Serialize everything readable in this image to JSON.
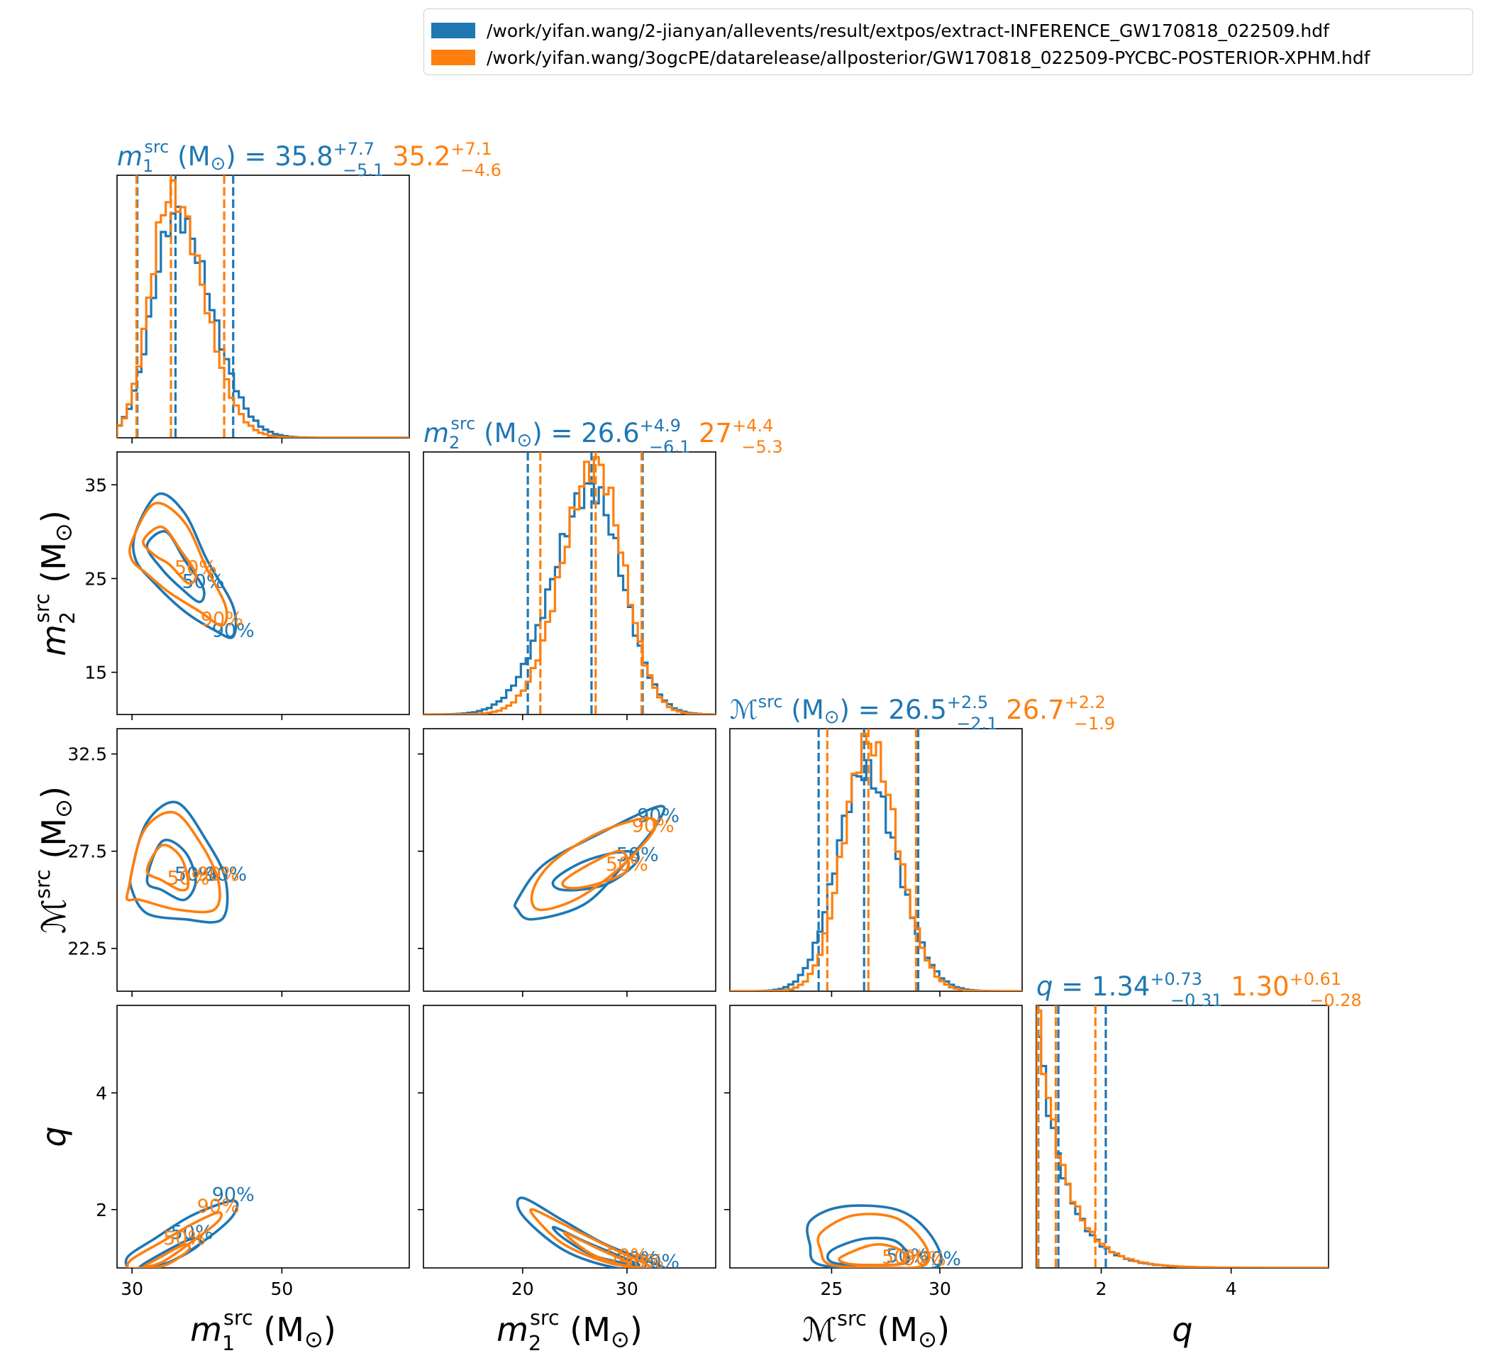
{
  "colors": {
    "blue": "#1f77b4",
    "orange": "#ff7f0e"
  },
  "legend": {
    "entries": [
      {
        "label": "/work/yifan.wang/2-jianyan/allevents/result/extpos/extract-INFERENCE_GW170818_022509.hdf",
        "color": "#1f77b4"
      },
      {
        "label": "/work/yifan.wang/3ogcPE/datarelease/allposterior/GW170818_022509-PYCBC-POSTERIOR-XPHM.hdf",
        "color": "#ff7f0e"
      }
    ]
  },
  "chart_data": {
    "type": "corner",
    "parameters": [
      {
        "key": "m1",
        "label": "m1src (M⊙)",
        "range": [
          28,
          67
        ],
        "ticks": [
          30,
          50
        ],
        "tick_labels": [
          "30",
          "50"
        ],
        "summary": [
          {
            "text": "35.8",
            "plus": "+7.7",
            "minus": "−5.1",
            "median": 35.8,
            "lo": 30.7,
            "hi": 43.5
          },
          {
            "text": "35.2",
            "plus": "+7.1",
            "minus": "−4.6",
            "median": 35.2,
            "lo": 30.6,
            "hi": 42.3
          }
        ]
      },
      {
        "key": "m2",
        "label": "m2src (M⊙)",
        "range": [
          10.5,
          38.5
        ],
        "ticks": [
          20,
          30
        ],
        "tick_labels": [
          "20",
          "30"
        ],
        "summary": [
          {
            "text": "26.6",
            "plus": "+4.9",
            "minus": "−6.1",
            "median": 26.6,
            "lo": 20.5,
            "hi": 31.5
          },
          {
            "text": "27",
            "plus": "+4.4",
            "minus": "−5.3",
            "median": 27.0,
            "lo": 21.7,
            "hi": 31.4
          }
        ]
      },
      {
        "key": "mc",
        "label": "ℳsrc (M⊙)",
        "range": [
          20.3,
          33.8
        ],
        "ticks": [
          25,
          30
        ],
        "tick_labels": [
          "25",
          "30"
        ],
        "summary": [
          {
            "text": "26.5",
            "plus": "+2.5",
            "minus": "−2.1",
            "median": 26.5,
            "lo": 24.4,
            "hi": 29.0
          },
          {
            "text": "26.7",
            "plus": "+2.2",
            "minus": "−1.9",
            "median": 26.7,
            "lo": 24.8,
            "hi": 28.9
          }
        ]
      },
      {
        "key": "q",
        "label": "q",
        "range": [
          1.0,
          5.5
        ],
        "ticks": [
          2,
          4
        ],
        "tick_labels": [
          "2",
          "4"
        ],
        "summary": [
          {
            "text": "1.34",
            "plus": "+0.73",
            "minus": "−0.31",
            "median": 1.34,
            "lo": 1.03,
            "hi": 2.07
          },
          {
            "text": "1.30",
            "plus": "+0.61",
            "minus": "−0.28",
            "median": 1.3,
            "lo": 1.02,
            "hi": 1.91
          }
        ]
      }
    ],
    "y_ticks": {
      "m2": {
        "ticks": [
          15,
          25,
          35
        ],
        "tick_labels": [
          "15",
          "25",
          "35"
        ]
      },
      "mc": {
        "ticks": [
          22.5,
          27.5,
          32.5
        ],
        "tick_labels": [
          "22.5",
          "27.5",
          "32.5"
        ]
      },
      "q": {
        "ticks": [
          2,
          4
        ],
        "tick_labels": [
          "2",
          "4"
        ]
      }
    },
    "contour_labels": [
      "50%",
      "90%"
    ],
    "contours": [
      {
        "x": "m1",
        "y": "m2",
        "series": [
          {
            "c90": [
              [
                30.5,
                30
              ],
              [
                33.5,
                34
              ],
              [
                37,
                32
              ],
              [
                40,
                27
              ],
              [
                43.5,
                22
              ],
              [
                43.5,
                18.8
              ],
              [
                41,
                19.5
              ],
              [
                37,
                21.5
              ],
              [
                33,
                24.5
              ],
              [
                30.5,
                27
              ]
            ],
            "c50": [
              [
                32,
                28.5
              ],
              [
                34.5,
                30
              ],
              [
                37,
                27
              ],
              [
                39.5,
                24
              ],
              [
                39,
                22.5
              ],
              [
                36.5,
                24
              ],
              [
                34,
                26
              ]
            ]
          },
          {
            "c90": [
              [
                30,
                29
              ],
              [
                33,
                33
              ],
              [
                37,
                31
              ],
              [
                40,
                26
              ],
              [
                42.5,
                22
              ],
              [
                42,
                20
              ],
              [
                39,
                21.5
              ],
              [
                35,
                23.5
              ],
              [
                32,
                25.5
              ],
              [
                30,
                27
              ]
            ],
            "c50": [
              [
                31.5,
                29
              ],
              [
                34,
                30.5
              ],
              [
                36.5,
                28
              ],
              [
                38.5,
                25.5
              ],
              [
                37.5,
                24.5
              ],
              [
                35,
                26.5
              ],
              [
                33,
                27.5
              ]
            ]
          }
        ]
      },
      {
        "x": "m1",
        "y": "mc",
        "series": [
          {
            "c90": [
              [
                30,
                26.5
              ],
              [
                32,
                29
              ],
              [
                36,
                30
              ],
              [
                40,
                28
              ],
              [
                42.5,
                26
              ],
              [
                42,
                24
              ],
              [
                37,
                24
              ],
              [
                32,
                24.3
              ],
              [
                30,
                25.5
              ]
            ],
            "c50": [
              [
                32,
                26
              ],
              [
                34,
                28
              ],
              [
                37,
                27.5
              ],
              [
                38.5,
                26
              ],
              [
                37,
                25
              ],
              [
                34,
                25.5
              ]
            ]
          },
          {
            "c90": [
              [
                29.5,
                25.5
              ],
              [
                31.5,
                28.5
              ],
              [
                35.5,
                29.5
              ],
              [
                39,
                28
              ],
              [
                41.5,
                26
              ],
              [
                41,
                24.5
              ],
              [
                36,
                24.5
              ],
              [
                31,
                25
              ],
              [
                29.5,
                25
              ]
            ],
            "c50": [
              [
                32,
                26.5
              ],
              [
                34,
                27.8
              ],
              [
                36.5,
                27.2
              ],
              [
                37.5,
                25.8
              ],
              [
                36.5,
                25.5
              ],
              [
                34,
                26
              ]
            ]
          }
        ]
      },
      {
        "x": "m2",
        "y": "mc",
        "series": [
          {
            "c90": [
              [
                19.5,
                25
              ],
              [
                22,
                26.8
              ],
              [
                27,
                28.3
              ],
              [
                33,
                29.8
              ],
              [
                33,
                29
              ],
              [
                30,
                27
              ],
              [
                26,
                24.8
              ],
              [
                21,
                24
              ],
              [
                19.5,
                24.5
              ]
            ],
            "c50": [
              [
                23,
                26
              ],
              [
                26,
                27
              ],
              [
                30,
                27.5
              ],
              [
                31,
                27
              ],
              [
                28,
                25.8
              ],
              [
                24,
                25.5
              ]
            ]
          },
          {
            "c90": [
              [
                21,
                25.5
              ],
              [
                23,
                27
              ],
              [
                27.5,
                28.5
              ],
              [
                32,
                29.2
              ],
              [
                32.5,
                28.5
              ],
              [
                29,
                26.5
              ],
              [
                25,
                25
              ],
              [
                21.5,
                24.5
              ]
            ],
            "c50": [
              [
                24,
                26
              ],
              [
                27,
                27
              ],
              [
                29.5,
                27.5
              ],
              [
                30,
                26.5
              ],
              [
                27,
                25.8
              ],
              [
                24.5,
                25.6
              ]
            ]
          }
        ]
      },
      {
        "x": "m1",
        "y": "q",
        "series": [
          {
            "c90": [
              [
                29.5,
                1.0
              ],
              [
                29.5,
                1.2
              ],
              [
                33,
                1.5
              ],
              [
                38,
                1.9
              ],
              [
                43.5,
                2.15
              ],
              [
                43.5,
                1.9
              ],
              [
                40,
                1.5
              ],
              [
                35,
                1.1
              ],
              [
                31,
                1.0
              ]
            ],
            "c50": [
              [
                31,
                1.0
              ],
              [
                34,
                1.25
              ],
              [
                38,
                1.5
              ],
              [
                39,
                1.4
              ],
              [
                35,
                1.1
              ]
            ]
          },
          {
            "c90": [
              [
                29.5,
                1.0
              ],
              [
                30,
                1.15
              ],
              [
                34,
                1.45
              ],
              [
                38,
                1.75
              ],
              [
                41.5,
                1.95
              ],
              [
                41.5,
                1.8
              ],
              [
                38,
                1.45
              ],
              [
                34,
                1.1
              ],
              [
                31,
                1.0
              ]
            ],
            "c50": [
              [
                31.5,
                1.0
              ],
              [
                34,
                1.2
              ],
              [
                37,
                1.4
              ],
              [
                37.5,
                1.3
              ],
              [
                34.5,
                1.05
              ]
            ]
          }
        ]
      },
      {
        "x": "m2",
        "y": "q",
        "series": [
          {
            "c90": [
              [
                20,
                2.2
              ],
              [
                24,
                1.8
              ],
              [
                28,
                1.4
              ],
              [
                33,
                1.05
              ],
              [
                33,
                1.0
              ],
              [
                29,
                1.0
              ],
              [
                24,
                1.3
              ],
              [
                20,
                1.9
              ]
            ],
            "c50": [
              [
                23,
                1.7
              ],
              [
                26,
                1.45
              ],
              [
                30,
                1.15
              ],
              [
                31,
                1.05
              ],
              [
                27,
                1.2
              ],
              [
                24,
                1.5
              ]
            ]
          },
          {
            "c90": [
              [
                21,
                2.0
              ],
              [
                25,
                1.65
              ],
              [
                29,
                1.3
              ],
              [
                32,
                1.05
              ],
              [
                31.5,
                1.0
              ],
              [
                28,
                1.1
              ],
              [
                24,
                1.4
              ],
              [
                21.5,
                1.8
              ]
            ],
            "c50": [
              [
                24,
                1.6
              ],
              [
                27,
                1.35
              ],
              [
                30,
                1.1
              ],
              [
                29.5,
                1.05
              ],
              [
                26.5,
                1.25
              ]
            ]
          }
        ]
      },
      {
        "x": "mc",
        "y": "q",
        "series": [
          {
            "c90": [
              [
                24,
                1.8
              ],
              [
                25.5,
                2.05
              ],
              [
                28,
                2.0
              ],
              [
                29.5,
                1.6
              ],
              [
                30,
                1.05
              ],
              [
                28,
                1.0
              ],
              [
                24.5,
                1.05
              ],
              [
                24,
                1.4
              ]
            ],
            "c50": [
              [
                25,
                1.3
              ],
              [
                26.5,
                1.5
              ],
              [
                28,
                1.45
              ],
              [
                28.5,
                1.1
              ],
              [
                26.5,
                1.05
              ],
              [
                25,
                1.1
              ]
            ]
          },
          {
            "c90": [
              [
                24.5,
                1.6
              ],
              [
                26,
                1.9
              ],
              [
                28,
                1.85
              ],
              [
                29.3,
                1.4
              ],
              [
                29.3,
                1.05
              ],
              [
                27.5,
                1.0
              ],
              [
                25,
                1.05
              ],
              [
                24.5,
                1.3
              ]
            ],
            "c50": [
              [
                25.5,
                1.2
              ],
              [
                27,
                1.4
              ],
              [
                28.2,
                1.3
              ],
              [
                28.3,
                1.08
              ],
              [
                26.5,
                1.05
              ],
              [
                25.5,
                1.1
              ]
            ]
          }
        ]
      }
    ]
  }
}
